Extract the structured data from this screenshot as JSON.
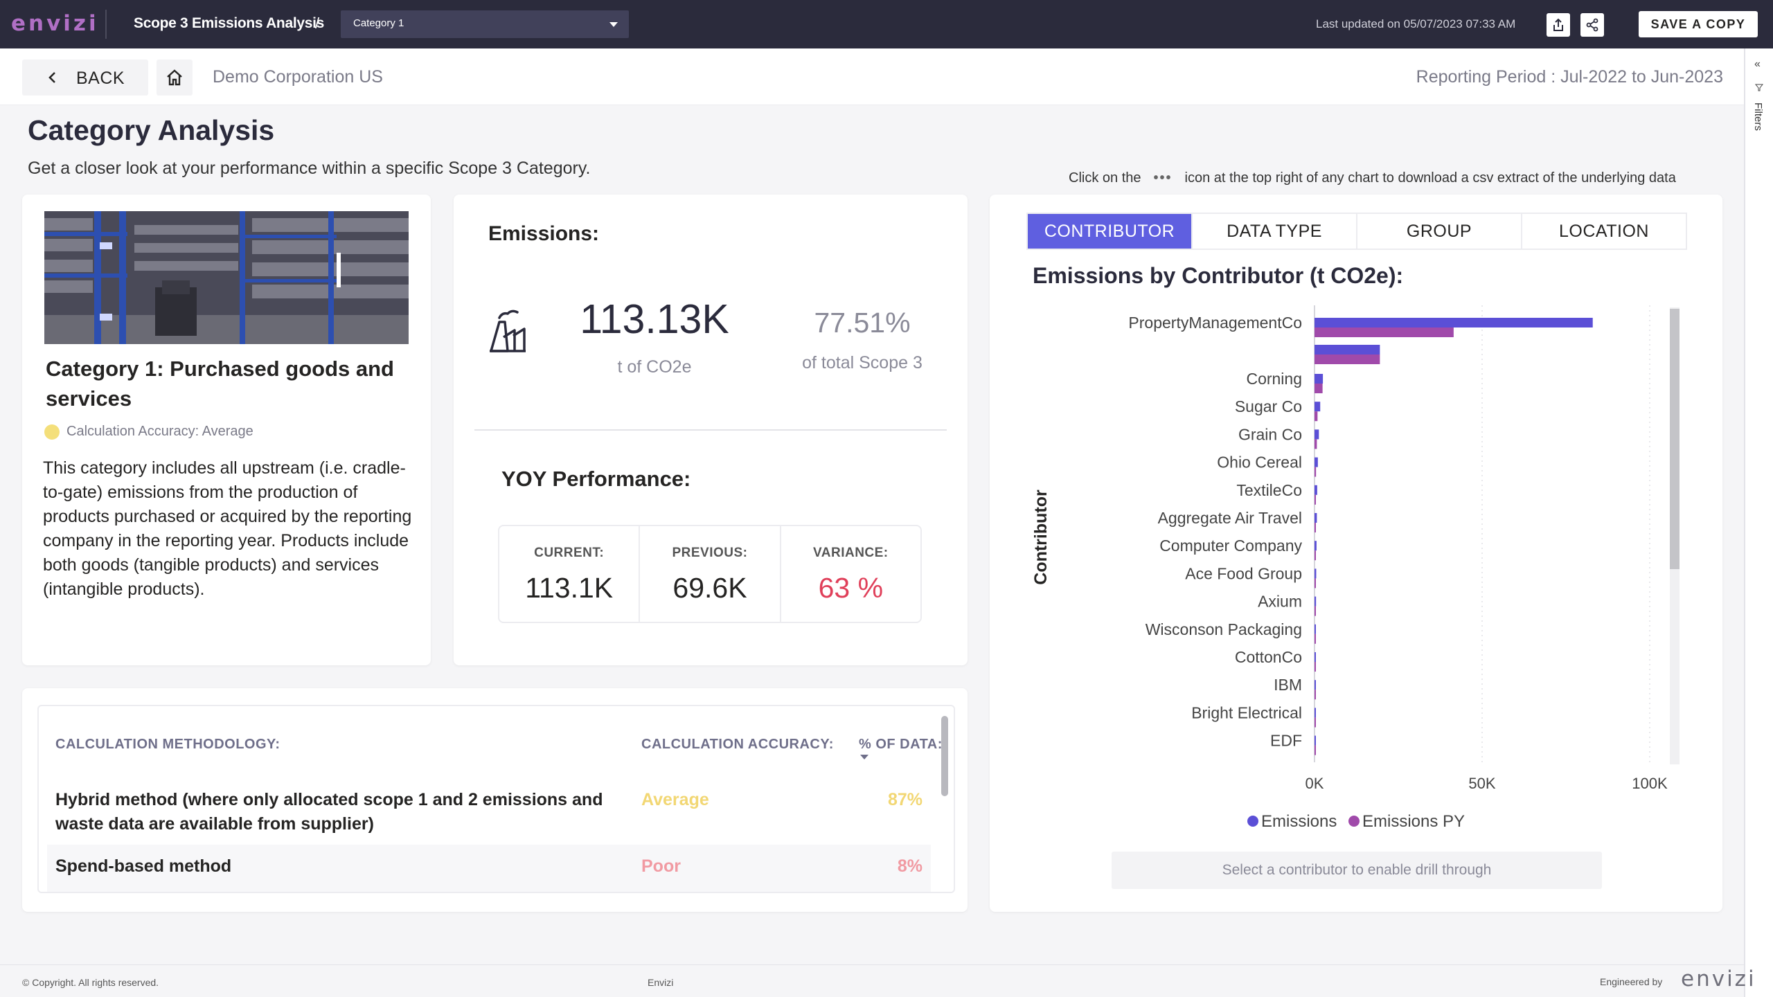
{
  "topbar": {
    "logo": "envizi",
    "app_title": "Scope 3 Emissions Analysis",
    "crumb_separator": "/",
    "category_select": "Category 1",
    "last_updated": "Last updated on 05/07/2023 07:33 AM",
    "save_copy": "SAVE A COPY",
    "icons": [
      "export-icon",
      "share-icon"
    ]
  },
  "filters_rail": {
    "label": "Filters"
  },
  "subheader": {
    "back": "BACK",
    "org": "Demo Corporation US",
    "reporting_period": "Reporting Period : Jul-2022 to Jun-2023"
  },
  "page": {
    "title": "Category Analysis",
    "subtitle": "Get a closer look at your performance within a specific Scope 3 Category.",
    "csv_hint_before": "Click on the",
    "csv_hint_dots": "•••",
    "csv_hint_after": "icon at the top right of any chart to download a csv extract of the underlying data"
  },
  "category_card": {
    "title": "Category 1: Purchased goods and services",
    "accuracy": "Calculation Accuracy: Average",
    "accuracy_color": "#f4df7a",
    "description": "This category includes all upstream (i.e. cradle-to-gate) emissions from the production of products purchased or acquired by the reporting company in the reporting year. Products include both goods (tangible products) and services (intangible products)."
  },
  "emissions_card": {
    "label": "Emissions:",
    "value": "113.13K",
    "unit": "t of CO2e",
    "percent": "77.51%",
    "percent_label": "of total Scope 3",
    "yoy_label": "YOY Performance:",
    "yoy": {
      "current_label": "CURRENT:",
      "current": "113.1K",
      "previous_label": "PREVIOUS:",
      "previous": "69.6K",
      "variance_label": "VARIANCE:",
      "variance": "63 %"
    },
    "variance_color": "#e0405a"
  },
  "chart_card": {
    "tabs": [
      "CONTRIBUTOR",
      "DATA TYPE",
      "GROUP",
      "LOCATION"
    ],
    "active_tab": "CONTRIBUTOR",
    "drill_hint": "Select a contributor to enable drill through"
  },
  "chart_data": {
    "type": "bar",
    "orientation": "horizontal",
    "title": "Emissions by Contributor (t CO2e):",
    "ylabel": "Contributor",
    "xlabel": "",
    "xlim": [
      0,
      110000
    ],
    "x_ticks": [
      "0K",
      "50K",
      "100K"
    ],
    "x_tick_values": [
      0,
      50000,
      100000
    ],
    "grid": "vertical dotted",
    "legend_position": "bottom",
    "categories": [
      "PropertyManagementCo",
      "",
      "Corning",
      "Sugar Co",
      "Grain Co",
      "Ohio Cereal",
      "TextileCo",
      "Aggregate Air Travel",
      "Computer Company",
      "Ace Food Group",
      "Axium",
      "Wisconson Packaging",
      "CottonCo",
      "IBM",
      "Bright Electrical",
      "EDF"
    ],
    "series": [
      {
        "name": "Emissions",
        "color": "#5b4fd6",
        "values": [
          83000,
          19500,
          2500,
          1700,
          1300,
          1000,
          800,
          700,
          600,
          500,
          450,
          400,
          350,
          300,
          250,
          200
        ]
      },
      {
        "name": "Emissions PY",
        "color": "#a04aaa",
        "values": [
          41500,
          19500,
          2400,
          900,
          700,
          450,
          300,
          250,
          200,
          150,
          130,
          120,
          100,
          90,
          80,
          70
        ]
      }
    ]
  },
  "methodology": {
    "headers": {
      "method": "CALCULATION METHODOLOGY:",
      "accuracy": "CALCULATION ACCURACY:",
      "pct": "% OF DATA:"
    },
    "rows": [
      {
        "method": "Hybrid method (where only allocated scope 1 and 2 emissions and waste data are available from supplier)",
        "accuracy": "Average",
        "pct": "87%"
      },
      {
        "method": "Spend-based method",
        "accuracy": "Poor",
        "pct": "8%"
      }
    ]
  },
  "footer": {
    "copyright": "© Copyright. All rights reserved.",
    "brand": "Envizi",
    "engineered": "Engineered by",
    "logo": "envizi"
  }
}
